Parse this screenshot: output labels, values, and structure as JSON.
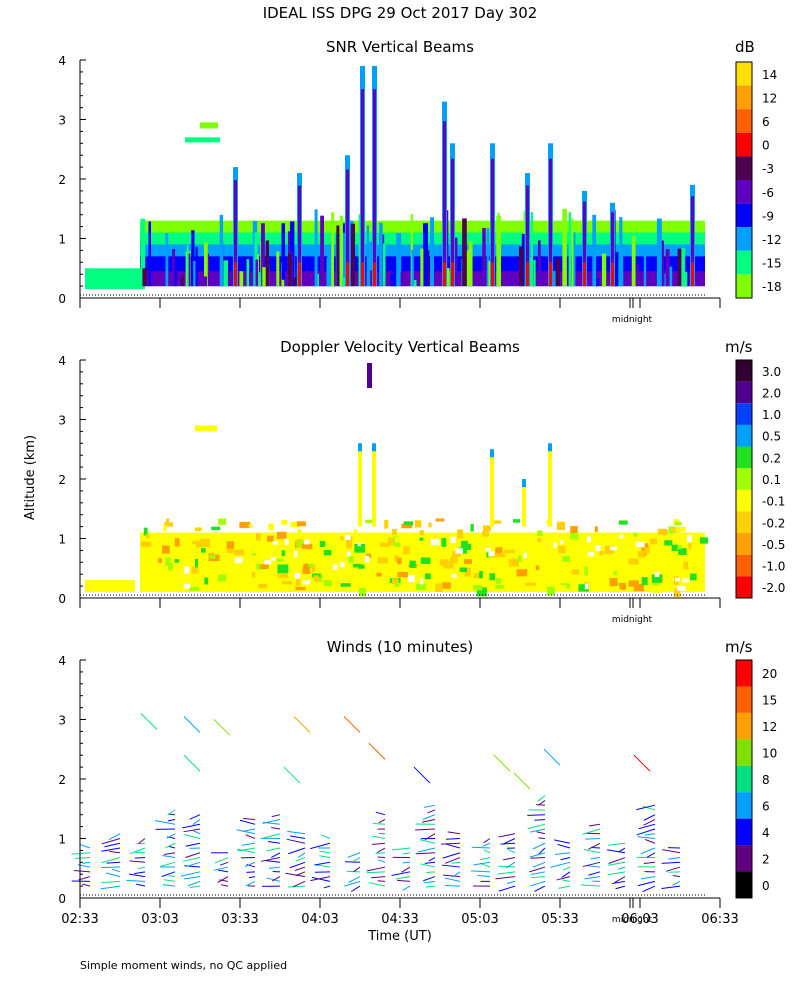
{
  "main_title": "IDEAL ISS DPG  29 Oct 2017 Day 302",
  "y_axis_label": "Altitude (km)",
  "x_axis_label": "Time (UT)",
  "footnote": "Simple moment winds, no QC applied",
  "midnight_label": "midnight",
  "chart_data": [
    {
      "type": "heatmap",
      "title": "SNR Vertical Beams",
      "colorbar_unit": "dB",
      "colorbar_levels": [
        "14",
        "12",
        "6",
        "0",
        "-3",
        "-6",
        "-9",
        "-12",
        "-15",
        "-18"
      ],
      "colorbar_colors": [
        "#ffe000",
        "#ffa000",
        "#ff6000",
        "#ff0000",
        "#500050",
        "#6000c0",
        "#0000ff",
        "#00a0ff",
        "#00ff80",
        "#80ff00"
      ],
      "ylim": [
        0,
        4
      ],
      "yticks": [
        "0",
        "1",
        "2",
        "3",
        "4"
      ]
    },
    {
      "type": "heatmap",
      "title": "Doppler Velocity Vertical Beams",
      "colorbar_unit": "m/s",
      "colorbar_levels": [
        "3.0",
        "2.0",
        "1.0",
        "0.5",
        "0.2",
        "0.1",
        "-0.1",
        "-0.2",
        "-0.5",
        "-1.0",
        "-2.0"
      ],
      "colorbar_colors": [
        "#300030",
        "#500090",
        "#0040ff",
        "#00a0ff",
        "#20e020",
        "#a0ff00",
        "#ffff00",
        "#ffd000",
        "#ffa000",
        "#ff6000",
        "#ff0000"
      ],
      "ylim": [
        0,
        4
      ],
      "yticks": [
        "0",
        "1",
        "2",
        "3",
        "4"
      ]
    },
    {
      "type": "scatter",
      "title": "Winds (10 minutes)",
      "colorbar_unit": "m/s",
      "colorbar_levels": [
        "20",
        "15",
        "12",
        "10",
        "8",
        "6",
        "4",
        "2",
        "0"
      ],
      "colorbar_colors": [
        "#ff0000",
        "#ff6000",
        "#ffa000",
        "#80e000",
        "#00e080",
        "#00a0ff",
        "#0000ff",
        "#600080",
        "#000000"
      ],
      "ylim": [
        0,
        4
      ],
      "yticks": [
        "0",
        "1",
        "2",
        "3",
        "4"
      ],
      "x_ticks": [
        "02:33",
        "03:03",
        "03:33",
        "04:03",
        "04:33",
        "05:03",
        "05:33",
        "06:03",
        "06:33"
      ]
    }
  ]
}
